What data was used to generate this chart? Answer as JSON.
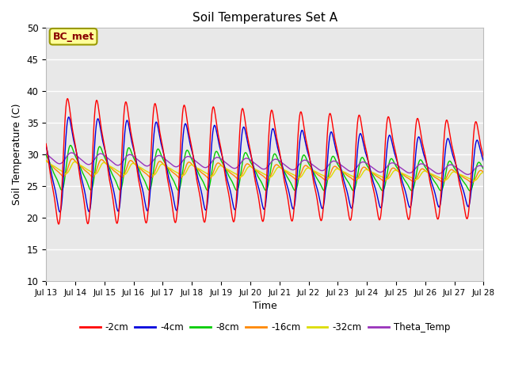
{
  "title": "Soil Temperatures Set A",
  "xlabel": "Time",
  "ylabel": "Soil Temperature (C)",
  "ylim": [
    10,
    50
  ],
  "xlim": [
    0,
    360
  ],
  "background_color": "#e8e8e8",
  "annotation_text": "BC_met",
  "annotation_bg": "#ffff99",
  "annotation_border": "#999900",
  "annotation_text_color": "#880000",
  "series_colors": {
    "-2cm": "#ff0000",
    "-4cm": "#0000dd",
    "-8cm": "#00cc00",
    "-16cm": "#ff8800",
    "-32cm": "#dddd00",
    "Theta_Temp": "#9933bb"
  },
  "x_tick_labels": [
    "Jul 13",
    "Jul 14",
    "Jul 15",
    "Jul 16",
    "Jul 17",
    "Jul 18",
    "Jul 19",
    "Jul 20",
    "Jul 21",
    "Jul 22",
    "Jul 23",
    "Jul 24",
    "Jul 25",
    "Jul 26",
    "Jul 27",
    "Jul 28"
  ],
  "x_tick_positions": [
    0,
    24,
    48,
    72,
    96,
    120,
    144,
    168,
    192,
    216,
    240,
    264,
    288,
    312,
    336,
    360
  ],
  "y_tick_positions": [
    10,
    15,
    20,
    25,
    30,
    35,
    40,
    45,
    50
  ],
  "n_points": 3601,
  "duration_hours": 360,
  "figsize": [
    6.4,
    4.8
  ],
  "dpi": 100
}
